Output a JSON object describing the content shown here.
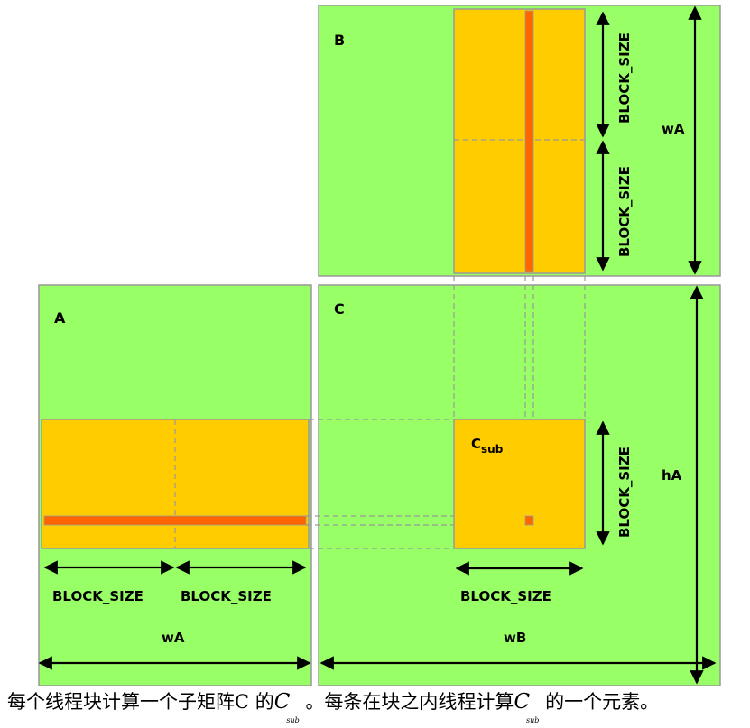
{
  "diagram": {
    "matrix_labels": {
      "a": "A",
      "b": "B",
      "c": "C"
    },
    "c_sub": {
      "base": "C",
      "sub": "sub"
    },
    "dims": {
      "block_size": "BLOCK_SIZE",
      "wA": "wA",
      "wB": "wB",
      "hA": "hA"
    },
    "colors": {
      "matrix_fill": "#99ff66",
      "matrix_border": "#999999",
      "block_fill": "#ffcc00",
      "strip_fill": "#ff6600",
      "arrow": "#000000",
      "dashed": "#999999"
    }
  },
  "caption": {
    "part1": "每个线程块计算一个子矩阵C  的",
    "csym1": "C",
    "sub1": "sub",
    "part2": "。每条在块之内线程计算",
    "csym2": "C",
    "sub2": "sub",
    "part3": "的一个元素。"
  }
}
